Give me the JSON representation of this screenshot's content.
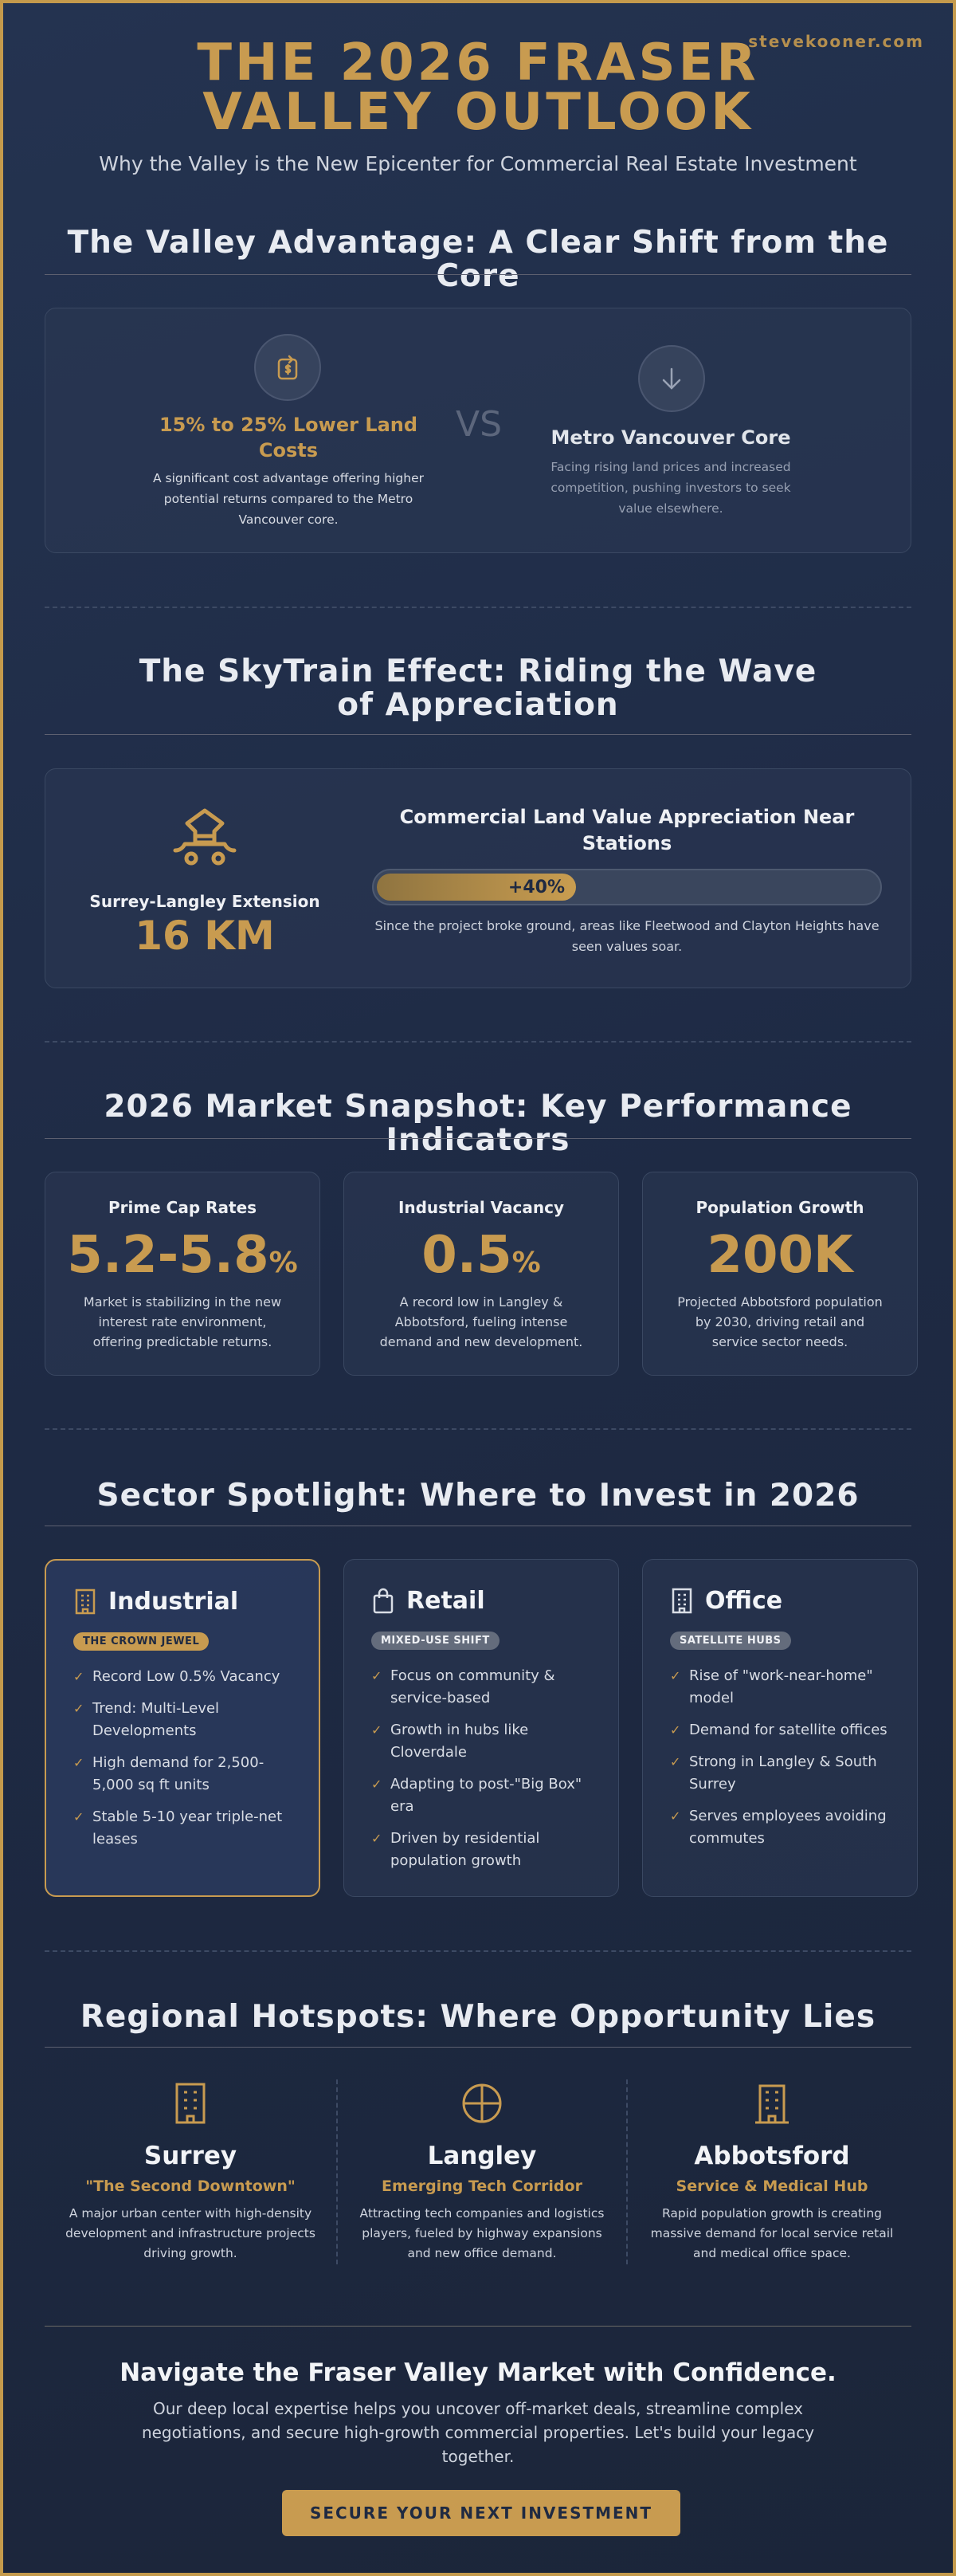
{
  "watermark": "stevekooner.com",
  "header": {
    "title": "THE 2026 FRASER VALLEY OUTLOOK",
    "subtitle": "Why the Valley is the New Epicenter for Commercial Real Estate Investment"
  },
  "advantage": {
    "heading": "The Valley Advantage: A Clear Shift from the Core",
    "left": {
      "title": "15% to 25% Lower Land Costs",
      "text": "A significant cost advantage offering higher potential returns compared to the Metro Vancouver core."
    },
    "vs": "VS",
    "right": {
      "title": "Metro Vancouver Core",
      "text": "Facing rising land prices and increased competition, pushing investors to seek value elsewhere."
    }
  },
  "skytrain": {
    "heading": "The SkyTrain Effect: Riding the Wave of Appreciation",
    "label": "Surrey-Langley Extension",
    "distance": "16 KM",
    "title": "Commercial Land Value Appreciation Near Stations",
    "bar_label": "+40%",
    "text": "Since the project broke ground, areas like Fleetwood and Clayton Heights have seen values soar."
  },
  "snapshot": {
    "heading": "2026 Market Snapshot: Key Performance Indicators",
    "cards": [
      {
        "label": "Prime Cap Rates",
        "value": "5.2-5.8",
        "unit": "%",
        "text": "Market is stabilizing in the new interest rate environment, offering predictable returns."
      },
      {
        "label": "Industrial Vacancy",
        "value": "0.5",
        "unit": "%",
        "text": "A record low in Langley & Abbotsford, fueling intense demand and new development."
      },
      {
        "label": "Population Growth",
        "value": "200K",
        "text": "Projected Abbotsford population by 2030, driving retail and service sector needs."
      }
    ]
  },
  "sectors": {
    "heading": "Sector Spotlight: Where to Invest in 2026",
    "cards": [
      {
        "title": "Industrial",
        "badge": "THE CROWN JEWEL",
        "items": [
          "Record Low 0.5% Vacancy",
          "Trend: Multi-Level Developments",
          "High demand for 2,500-5,000 sq ft units",
          "Stable 5-10 year triple-net leases"
        ]
      },
      {
        "title": "Retail",
        "badge": "MIXED-USE SHIFT",
        "items": [
          "Focus on community & service-based",
          "Growth in hubs like Cloverdale",
          "Adapting to post-\"Big Box\" era",
          "Driven by residential population growth"
        ]
      },
      {
        "title": "Office",
        "badge": "SATELLITE HUBS",
        "items": [
          "Rise of \"work-near-home\" model",
          "Demand for satellite offices",
          "Strong in Langley & South Surrey",
          "Serves employees avoiding commutes"
        ]
      }
    ]
  },
  "hotspots": {
    "heading": "Regional Hotspots: Where Opportunity Lies",
    "items": [
      {
        "name": "Surrey",
        "tagline": "\"The Second Downtown\"",
        "text": "A major urban center with high-density development and infrastructure projects driving growth."
      },
      {
        "name": "Langley",
        "tagline": "Emerging Tech Corridor",
        "text": "Attracting tech companies and logistics players, fueled by highway expansions and new office demand."
      },
      {
        "name": "Abbotsford",
        "tagline": "Service & Medical Hub",
        "text": "Rapid population growth is creating massive demand for local service retail and medical office space."
      }
    ]
  },
  "cta": {
    "heading": "Navigate the Fraser Valley Market with Confidence.",
    "text": "Our deep local expertise helps you uncover off-market deals, streamline complex negotiations, and secure high-growth commercial properties. Let's build your legacy together.",
    "button": "SECURE YOUR NEXT INVESTMENT"
  }
}
